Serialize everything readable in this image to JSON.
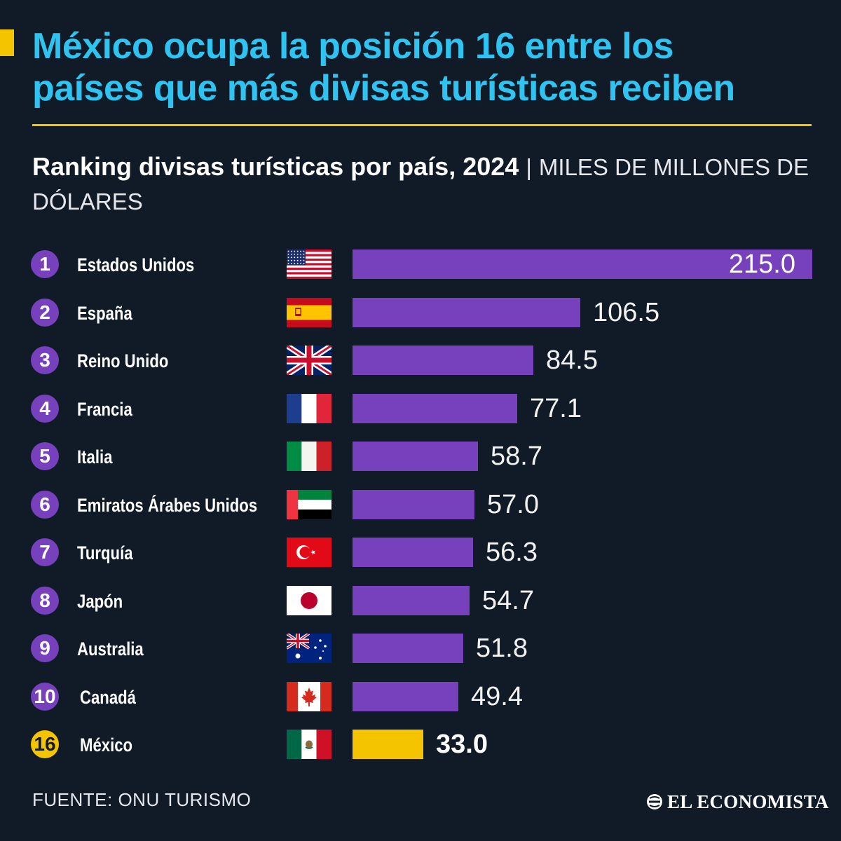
{
  "headline": {
    "line1": "México ocupa la posición 16 entre los",
    "line2": "países que más divisas turísticas reciben"
  },
  "subtitle": {
    "bold": "Ranking divisas turísticas por país, 2024",
    "separator": "|",
    "unit": "MILES DE MILLONES DE DÓLARES"
  },
  "colors": {
    "background": "#111a27",
    "headline": "#2ec3f0",
    "accent": "#f5c400",
    "bar": "#7740bd",
    "highlight_bar": "#f5c400"
  },
  "chart_data": {
    "type": "bar",
    "orientation": "horizontal",
    "title": "Ranking divisas turísticas por país, 2024",
    "unit": "MILES DE MILLONES DE DÓLARES",
    "xlim": [
      0,
      215
    ],
    "grid": false,
    "rows": [
      {
        "rank": "1",
        "country": "Estados Unidos",
        "flag": "us-flag-icon",
        "value": 215.0,
        "label": "215.0",
        "highlight": false
      },
      {
        "rank": "2",
        "country": "España",
        "flag": "es-flag-icon",
        "value": 106.5,
        "label": "106.5",
        "highlight": false
      },
      {
        "rank": "3",
        "country": "Reino Unido",
        "flag": "gb-flag-icon",
        "value": 84.5,
        "label": "84.5",
        "highlight": false
      },
      {
        "rank": "4",
        "country": "Francia",
        "flag": "fr-flag-icon",
        "value": 77.1,
        "label": "77.1",
        "highlight": false
      },
      {
        "rank": "5",
        "country": "Italia",
        "flag": "it-flag-icon",
        "value": 58.7,
        "label": "58.7",
        "highlight": false
      },
      {
        "rank": "6",
        "country": "Emiratos Árabes Unidos",
        "flag": "ae-flag-icon",
        "value": 57.0,
        "label": "57.0",
        "highlight": false
      },
      {
        "rank": "7",
        "country": "Turquía",
        "flag": "tr-flag-icon",
        "value": 56.3,
        "label": "56.3",
        "highlight": false
      },
      {
        "rank": "8",
        "country": "Japón",
        "flag": "jp-flag-icon",
        "value": 54.7,
        "label": "54.7",
        "highlight": false
      },
      {
        "rank": "9",
        "country": "Australia",
        "flag": "au-flag-icon",
        "value": 51.8,
        "label": "51.8",
        "highlight": false
      },
      {
        "rank": "10",
        "country": "Canadá",
        "flag": "ca-flag-icon",
        "value": 49.4,
        "label": "49.4",
        "highlight": false
      },
      {
        "rank": "16",
        "country": "México",
        "flag": "mx-flag-icon",
        "value": 33.0,
        "label": "33.0",
        "highlight": true
      }
    ]
  },
  "footer": {
    "source": "FUENTE: ONU TURISMO",
    "logo_text": "EL ECONOMISTA",
    "logo_icon": "el-economista-logo-icon"
  }
}
